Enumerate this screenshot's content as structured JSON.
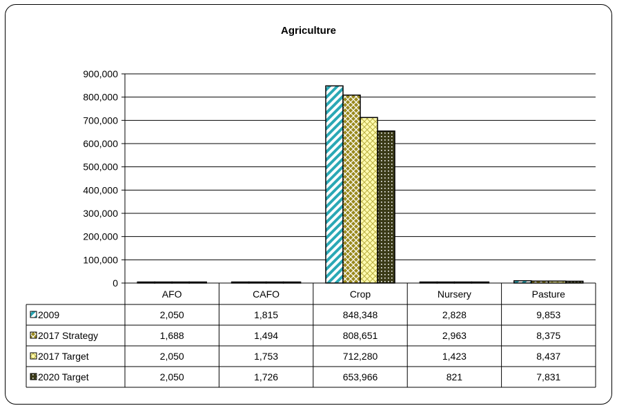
{
  "chart_data": {
    "type": "bar",
    "title": "Agriculture",
    "categories": [
      "AFO",
      "CAFO",
      "Crop",
      "Nursery",
      "Pasture"
    ],
    "ylim": [
      0,
      900000
    ],
    "yticks": [
      0,
      100000,
      200000,
      300000,
      400000,
      500000,
      600000,
      700000,
      800000,
      900000
    ],
    "ytick_labels": [
      "0",
      "100,000",
      "200,000",
      "300,000",
      "400,000",
      "500,000",
      "600,000",
      "700,000",
      "800,000",
      "900,000"
    ],
    "grid": true,
    "legend": "data-table",
    "series": [
      {
        "name": "2009",
        "values": [
          2050,
          1815,
          848348,
          2828,
          9853
        ],
        "labels": [
          "2,050",
          "1,815",
          "848,348",
          "2,828",
          "9,853"
        ],
        "color": "#2aa8b5",
        "pattern": "diagonal-stripes"
      },
      {
        "name": "2017 Strategy",
        "values": [
          1688,
          1494,
          808651,
          2963,
          8375
        ],
        "labels": [
          "1,688",
          "1,494",
          "808,651",
          "2,963",
          "8,375"
        ],
        "color": "#9a8a1e",
        "pattern": "diagonal-cross"
      },
      {
        "name": "2017 Target",
        "values": [
          2050,
          1753,
          712280,
          1423,
          8437
        ],
        "labels": [
          "2,050",
          "1,753",
          "712,280",
          "1,423",
          "8,437"
        ],
        "color": "#fffbb0",
        "pattern": "diagonal-cross"
      },
      {
        "name": "2020 Target",
        "values": [
          2050,
          1726,
          653966,
          821,
          7831
        ],
        "labels": [
          "2,050",
          "1,726",
          "653,966",
          "821",
          "7,831"
        ],
        "color": "#3b3b18",
        "pattern": "dotted-grid"
      }
    ]
  }
}
